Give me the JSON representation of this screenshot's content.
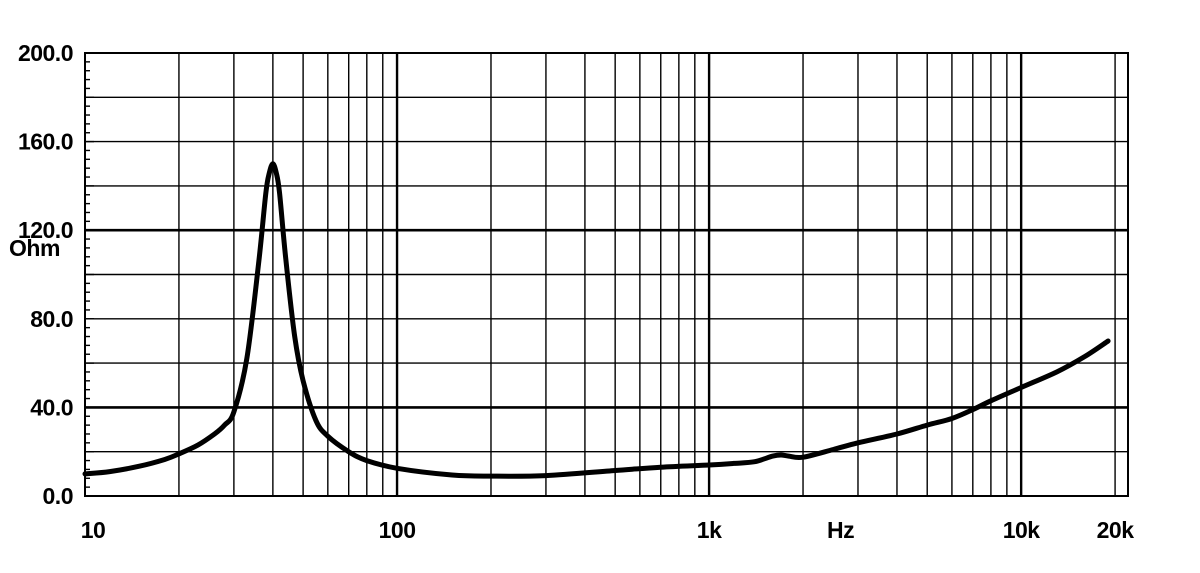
{
  "chart_data": {
    "type": "line",
    "title": "",
    "xlabel": "Hz",
    "ylabel": "Ohm",
    "x_scale": "log",
    "xlim": [
      10,
      22000
    ],
    "ylim": [
      0,
      200
    ],
    "grid": true,
    "x_ticks": [
      {
        "value": 10,
        "label": "10"
      },
      {
        "value": 100,
        "label": "100"
      },
      {
        "value": 1000,
        "label": "1k"
      },
      {
        "value": 10000,
        "label": "10k"
      },
      {
        "value": 20000,
        "label": "20k"
      }
    ],
    "y_ticks": [
      {
        "value": 0,
        "label": "0.0"
      },
      {
        "value": 40,
        "label": "40.0"
      },
      {
        "value": 80,
        "label": "80.0"
      },
      {
        "value": 120,
        "label": "120.0"
      },
      {
        "value": 160,
        "label": "160.0"
      },
      {
        "value": 200,
        "label": "200.0"
      }
    ],
    "series": [
      {
        "name": "",
        "color": "#000000",
        "x": [
          10,
          12,
          15,
          18,
          20,
          23,
          26,
          28,
          30,
          33,
          36,
          38,
          39,
          40,
          41,
          42,
          44,
          47,
          50,
          55,
          60,
          70,
          80,
          100,
          150,
          200,
          300,
          500,
          700,
          1000,
          1200,
          1400,
          1600,
          1700,
          1800,
          2000,
          2500,
          3000,
          4000,
          5000,
          6000,
          7000,
          8000,
          10000,
          13000,
          16000,
          19000
        ],
        "y": [
          10,
          11,
          13.5,
          16.5,
          19,
          23,
          28,
          32,
          38,
          62,
          105,
          137,
          146,
          150,
          146,
          137,
          107,
          72,
          52,
          34,
          27,
          20,
          16,
          12.5,
          9.5,
          9,
          9.2,
          11.5,
          13,
          14,
          14.7,
          15.5,
          18,
          18.5,
          18,
          17.5,
          21,
          24,
          28,
          32,
          35,
          39,
          43,
          49,
          56,
          63,
          70
        ]
      }
    ]
  }
}
